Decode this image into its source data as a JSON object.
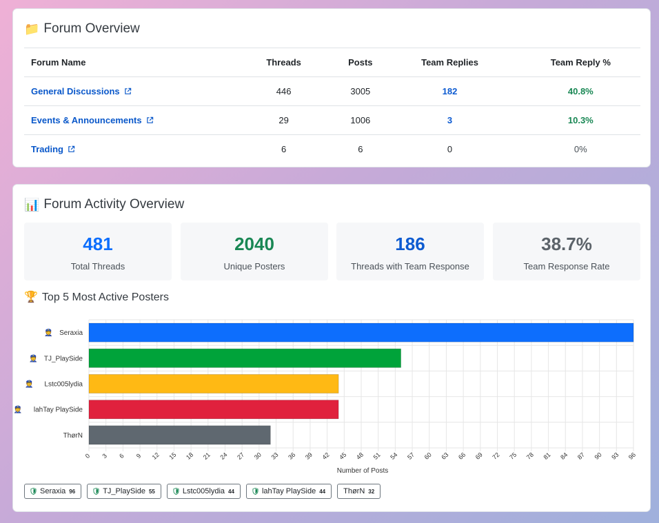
{
  "overview": {
    "title": "Forum Overview",
    "icon": "folder-icon",
    "columns": [
      "Forum Name",
      "Threads",
      "Posts",
      "Team Replies",
      "Team Reply %"
    ],
    "rows": [
      {
        "name": "General Discussions",
        "threads": "446",
        "posts": "3005",
        "team_replies": "182",
        "team_reply_pct": "40.8%"
      },
      {
        "name": "Events & Announcements",
        "threads": "29",
        "posts": "1006",
        "team_replies": "3",
        "team_reply_pct": "10.3%"
      },
      {
        "name": "Trading",
        "threads": "6",
        "posts": "6",
        "team_replies": "0",
        "team_reply_pct": "0%"
      }
    ]
  },
  "activity": {
    "title": "Forum Activity Overview",
    "icon": "bar-chart-icon",
    "stats": [
      {
        "value": "481",
        "label": "Total Threads",
        "color": "#0d6efd"
      },
      {
        "value": "2040",
        "label": "Unique Posters",
        "color": "#198754"
      },
      {
        "value": "186",
        "label": "Threads with Team Response",
        "color": "#0d5bd1"
      },
      {
        "value": "38.7%",
        "label": "Team Response Rate",
        "color": "#5c636a"
      }
    ],
    "top_title": "Top 5 Most Active Posters",
    "top_icon": "trophy-icon"
  },
  "chart_data": {
    "type": "bar",
    "orientation": "horizontal",
    "categories": [
      "Seraxia",
      "TJ_PlaySide",
      "Lstc005lydia",
      "lahTay PlaySide",
      "ThørN"
    ],
    "values": [
      96,
      55,
      44,
      44,
      32
    ],
    "team_member": [
      true,
      true,
      true,
      true,
      false
    ],
    "colors": [
      "#0d6efd",
      "#00a33a",
      "#ffb914",
      "#e0213d",
      "#5f6870"
    ],
    "xlabel": "Number of Posts",
    "xlim": [
      0,
      96
    ],
    "xticks": [
      0,
      3,
      6,
      9,
      12,
      15,
      18,
      21,
      24,
      27,
      30,
      33,
      36,
      39,
      42,
      45,
      48,
      51,
      54,
      57,
      60,
      63,
      66,
      69,
      72,
      75,
      78,
      81,
      84,
      87,
      90,
      93,
      96
    ],
    "grid": true
  },
  "badges": [
    {
      "name": "Seraxia",
      "count": "96",
      "team": true
    },
    {
      "name": "TJ_PlaySide",
      "count": "55",
      "team": true
    },
    {
      "name": "Lstc005lydia",
      "count": "44",
      "team": true
    },
    {
      "name": "lahTay PlaySide",
      "count": "44",
      "team": true
    },
    {
      "name": "ThørN",
      "count": "32",
      "team": false
    }
  ]
}
